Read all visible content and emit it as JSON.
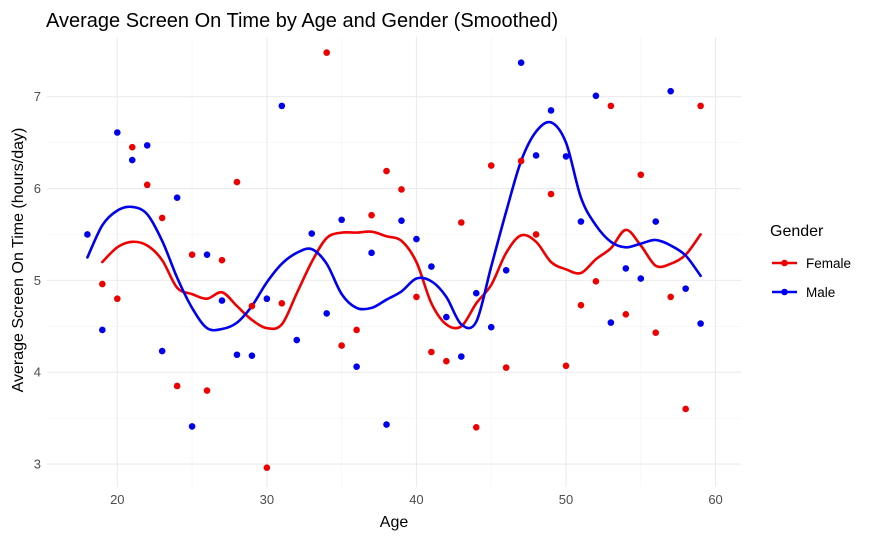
{
  "chart_data": {
    "type": "scatter",
    "title": "Average Screen On Time by Age and Gender (Smoothed)",
    "xlabel": "Age",
    "ylabel": "Average Screen On Time (hours/day)",
    "xlim": [
      15.3,
      61.7
    ],
    "ylim": [
      2.75,
      7.65
    ],
    "xticks": [
      20,
      30,
      40,
      50,
      60
    ],
    "yticks": [
      3,
      4,
      5,
      6,
      7
    ],
    "grid": true,
    "legend": {
      "title": "Gender",
      "position": "right"
    },
    "series": [
      {
        "name": "Female",
        "color": "#ee0000",
        "points": [
          [
            19,
            4.96
          ],
          [
            20,
            4.8
          ],
          [
            21,
            6.45
          ],
          [
            22,
            6.04
          ],
          [
            23,
            5.68
          ],
          [
            24,
            3.85
          ],
          [
            25,
            5.28
          ],
          [
            26,
            3.8
          ],
          [
            27,
            5.22
          ],
          [
            28,
            6.07
          ],
          [
            29,
            4.72
          ],
          [
            30,
            2.96
          ],
          [
            31,
            4.75
          ],
          [
            34,
            7.48
          ],
          [
            35,
            4.29
          ],
          [
            36,
            4.46
          ],
          [
            37,
            5.71
          ],
          [
            38,
            6.19
          ],
          [
            39,
            5.99
          ],
          [
            40,
            4.82
          ],
          [
            41,
            4.22
          ],
          [
            42,
            4.12
          ],
          [
            43,
            5.63
          ],
          [
            44,
            3.4
          ],
          [
            45,
            6.25
          ],
          [
            46,
            4.05
          ],
          [
            47,
            6.3
          ],
          [
            48,
            5.5
          ],
          [
            49,
            5.94
          ],
          [
            50,
            4.07
          ],
          [
            51,
            4.73
          ],
          [
            52,
            4.99
          ],
          [
            53,
            6.9
          ],
          [
            54,
            4.63
          ],
          [
            55,
            6.15
          ],
          [
            56,
            4.43
          ],
          [
            57,
            4.82
          ],
          [
            58,
            3.6
          ],
          [
            59,
            6.9
          ]
        ],
        "smooth": [
          [
            19,
            5.2
          ],
          [
            20,
            5.36
          ],
          [
            21,
            5.42
          ],
          [
            22,
            5.38
          ],
          [
            23,
            5.22
          ],
          [
            24,
            4.92
          ],
          [
            25,
            4.85
          ],
          [
            26,
            4.8
          ],
          [
            27,
            4.87
          ],
          [
            28,
            4.72
          ],
          [
            29,
            4.57
          ],
          [
            30,
            4.48
          ],
          [
            31,
            4.52
          ],
          [
            32,
            4.86
          ],
          [
            33,
            5.2
          ],
          [
            34,
            5.46
          ],
          [
            35,
            5.52
          ],
          [
            36,
            5.52
          ],
          [
            37,
            5.53
          ],
          [
            38,
            5.48
          ],
          [
            39,
            5.43
          ],
          [
            40,
            5.2
          ],
          [
            41,
            4.75
          ],
          [
            42,
            4.52
          ],
          [
            43,
            4.5
          ],
          [
            44,
            4.75
          ],
          [
            45,
            4.95
          ],
          [
            46,
            5.3
          ],
          [
            47,
            5.49
          ],
          [
            48,
            5.42
          ],
          [
            49,
            5.2
          ],
          [
            50,
            5.12
          ],
          [
            51,
            5.08
          ],
          [
            52,
            5.23
          ],
          [
            53,
            5.35
          ],
          [
            54,
            5.55
          ],
          [
            55,
            5.38
          ],
          [
            56,
            5.16
          ],
          [
            57,
            5.18
          ],
          [
            58,
            5.28
          ],
          [
            59,
            5.5
          ]
        ]
      },
      {
        "name": "Male",
        "color": "#0000ee",
        "points": [
          [
            18,
            5.5
          ],
          [
            19,
            4.46
          ],
          [
            20,
            6.61
          ],
          [
            21,
            6.31
          ],
          [
            22,
            6.47
          ],
          [
            23,
            4.23
          ],
          [
            24,
            5.9
          ],
          [
            25,
            3.41
          ],
          [
            26,
            5.28
          ],
          [
            27,
            4.78
          ],
          [
            28,
            4.19
          ],
          [
            29,
            4.18
          ],
          [
            30,
            4.8
          ],
          [
            31,
            6.9
          ],
          [
            32,
            4.35
          ],
          [
            33,
            5.51
          ],
          [
            34,
            4.64
          ],
          [
            35,
            5.66
          ],
          [
            36,
            4.06
          ],
          [
            37,
            5.3
          ],
          [
            38,
            3.43
          ],
          [
            39,
            5.65
          ],
          [
            40,
            5.45
          ],
          [
            41,
            5.15
          ],
          [
            42,
            4.6
          ],
          [
            43,
            4.17
          ],
          [
            44,
            4.86
          ],
          [
            45,
            4.49
          ],
          [
            46,
            5.11
          ],
          [
            47,
            7.37
          ],
          [
            48,
            6.36
          ],
          [
            49,
            6.85
          ],
          [
            50,
            6.35
          ],
          [
            51,
            5.64
          ],
          [
            52,
            7.01
          ],
          [
            53,
            4.54
          ],
          [
            54,
            5.13
          ],
          [
            55,
            5.02
          ],
          [
            56,
            5.64
          ],
          [
            57,
            7.06
          ],
          [
            58,
            4.91
          ],
          [
            59,
            4.53
          ]
        ],
        "smooth": [
          [
            18,
            5.25
          ],
          [
            19,
            5.6
          ],
          [
            20,
            5.76
          ],
          [
            21,
            5.8
          ],
          [
            22,
            5.72
          ],
          [
            23,
            5.43
          ],
          [
            24,
            5.03
          ],
          [
            25,
            4.7
          ],
          [
            26,
            4.48
          ],
          [
            27,
            4.47
          ],
          [
            28,
            4.54
          ],
          [
            29,
            4.72
          ],
          [
            30,
            4.98
          ],
          [
            31,
            5.18
          ],
          [
            32,
            5.3
          ],
          [
            33,
            5.34
          ],
          [
            34,
            5.18
          ],
          [
            35,
            4.85
          ],
          [
            36,
            4.7
          ],
          [
            37,
            4.7
          ],
          [
            38,
            4.79
          ],
          [
            39,
            4.88
          ],
          [
            40,
            5.02
          ],
          [
            41,
            4.99
          ],
          [
            42,
            4.82
          ],
          [
            43,
            4.52
          ],
          [
            44,
            4.55
          ],
          [
            45,
            5.15
          ],
          [
            46,
            5.75
          ],
          [
            47,
            6.3
          ],
          [
            48,
            6.62
          ],
          [
            49,
            6.72
          ],
          [
            50,
            6.5
          ],
          [
            51,
            5.9
          ],
          [
            52,
            5.6
          ],
          [
            53,
            5.42
          ],
          [
            54,
            5.36
          ],
          [
            55,
            5.4
          ],
          [
            56,
            5.44
          ],
          [
            57,
            5.38
          ],
          [
            58,
            5.27
          ],
          [
            59,
            5.05
          ]
        ]
      }
    ]
  }
}
